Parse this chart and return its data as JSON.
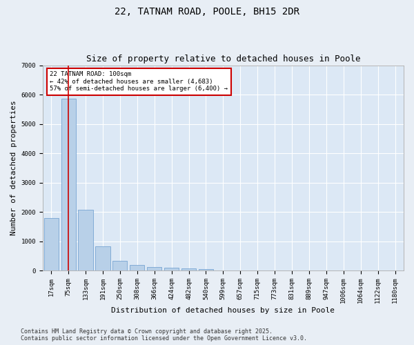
{
  "title": "22, TATNAM ROAD, POOLE, BH15 2DR",
  "subtitle": "Size of property relative to detached houses in Poole",
  "xlabel": "Distribution of detached houses by size in Poole",
  "ylabel": "Number of detached properties",
  "categories": [
    "17sqm",
    "75sqm",
    "133sqm",
    "191sqm",
    "250sqm",
    "308sqm",
    "366sqm",
    "424sqm",
    "482sqm",
    "540sqm",
    "599sqm",
    "657sqm",
    "715sqm",
    "773sqm",
    "831sqm",
    "889sqm",
    "947sqm",
    "1006sqm",
    "1064sqm",
    "1122sqm",
    "1180sqm"
  ],
  "values": [
    1780,
    5850,
    2080,
    820,
    340,
    180,
    110,
    90,
    70,
    60,
    0,
    0,
    0,
    0,
    0,
    0,
    0,
    0,
    0,
    0,
    0
  ],
  "bar_color": "#b8d0e8",
  "bar_edge_color": "#6699cc",
  "vline_x": 1,
  "vline_color": "#cc0000",
  "annotation_text": "22 TATNAM ROAD: 100sqm\n← 42% of detached houses are smaller (4,683)\n57% of semi-detached houses are larger (6,400) →",
  "annotation_box_color": "#cc0000",
  "background_color": "#dce8f5",
  "fig_background_color": "#e8eef5",
  "grid_color": "#ffffff",
  "ylim": [
    0,
    7000
  ],
  "yticks": [
    0,
    1000,
    2000,
    3000,
    4000,
    5000,
    6000,
    7000
  ],
  "footer": "Contains HM Land Registry data © Crown copyright and database right 2025.\nContains public sector information licensed under the Open Government Licence v3.0.",
  "title_fontsize": 10,
  "subtitle_fontsize": 9,
  "label_fontsize": 8,
  "tick_fontsize": 6.5,
  "footer_fontsize": 6
}
